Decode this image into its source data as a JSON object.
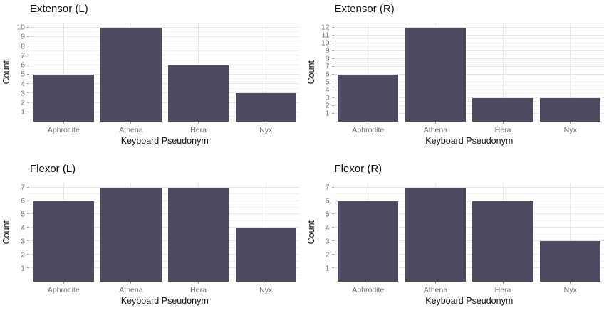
{
  "figure": {
    "layout": "2x2-grid-of-bar-charts",
    "x_axis_title": "Keyboard Pseudonym",
    "y_axis_title": "Count",
    "categories": [
      "Aphrodite",
      "Athena",
      "Hera",
      "Nyx"
    ]
  },
  "colors": {
    "bar_fill": "#4f4a60",
    "grid_major": "#e8e8e8",
    "grid_minor": "#f3f3f3",
    "axis_tick": "#9a9a9a",
    "axis_text": "#6e6e6e",
    "title_text": "#111111",
    "background": "#ffffff"
  },
  "chart_data": [
    {
      "type": "bar",
      "title": "Extensor (L)",
      "xlabel": "Keyboard Pseudonym",
      "ylabel": "Count",
      "categories": [
        "Aphrodite",
        "Athena",
        "Hera",
        "Nyx"
      ],
      "values": [
        5,
        10,
        6,
        3
      ],
      "ylim": [
        0,
        10
      ],
      "yticks": [
        1,
        2,
        3,
        4,
        5,
        6,
        7,
        8,
        9,
        10
      ],
      "grid": "on",
      "legend": "none"
    },
    {
      "type": "bar",
      "title": "Extensor (R)",
      "xlabel": "Keyboard Pseudonym",
      "ylabel": "Count",
      "categories": [
        "Aphrodite",
        "Athena",
        "Hera",
        "Nyx"
      ],
      "values": [
        6,
        12,
        3,
        3
      ],
      "ylim": [
        0,
        12
      ],
      "yticks": [
        1,
        2,
        3,
        4,
        5,
        6,
        7,
        8,
        9,
        10,
        11,
        12
      ],
      "grid": "on",
      "legend": "none"
    },
    {
      "type": "bar",
      "title": "Flexor (L)",
      "xlabel": "Keyboard Pseudonym",
      "ylabel": "Count",
      "categories": [
        "Aphrodite",
        "Athena",
        "Hera",
        "Nyx"
      ],
      "values": [
        6,
        7,
        7,
        4
      ],
      "ylim": [
        0,
        7
      ],
      "yticks": [
        1,
        2,
        3,
        4,
        5,
        6,
        7
      ],
      "grid": "on",
      "legend": "none"
    },
    {
      "type": "bar",
      "title": "Flexor (R)",
      "xlabel": "Keyboard Pseudonym",
      "ylabel": "Count",
      "categories": [
        "Aphrodite",
        "Athena",
        "Hera",
        "Nyx"
      ],
      "values": [
        6,
        7,
        6,
        3
      ],
      "ylim": [
        0,
        7
      ],
      "yticks": [
        1,
        2,
        3,
        4,
        5,
        6,
        7
      ],
      "grid": "on",
      "legend": "none"
    }
  ]
}
